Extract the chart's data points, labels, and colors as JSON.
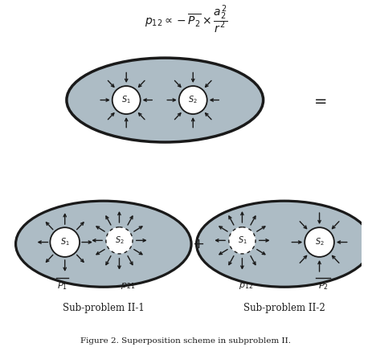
{
  "bg_color": "#ffffff",
  "ellipse_fill": "#adbcc5",
  "ellipse_edge": "#1a1a1a",
  "circle_fill": "#ffffff",
  "circle_edge": "#1a1a1a",
  "arrow_color": "#1a1a1a",
  "text_color": "#1a1a1a",
  "sub1_label": "Sub-problem II-1",
  "sub2_label": "Sub-problem II-2",
  "figure_caption": "Figure 2. Superposition scheme in subproblem II."
}
